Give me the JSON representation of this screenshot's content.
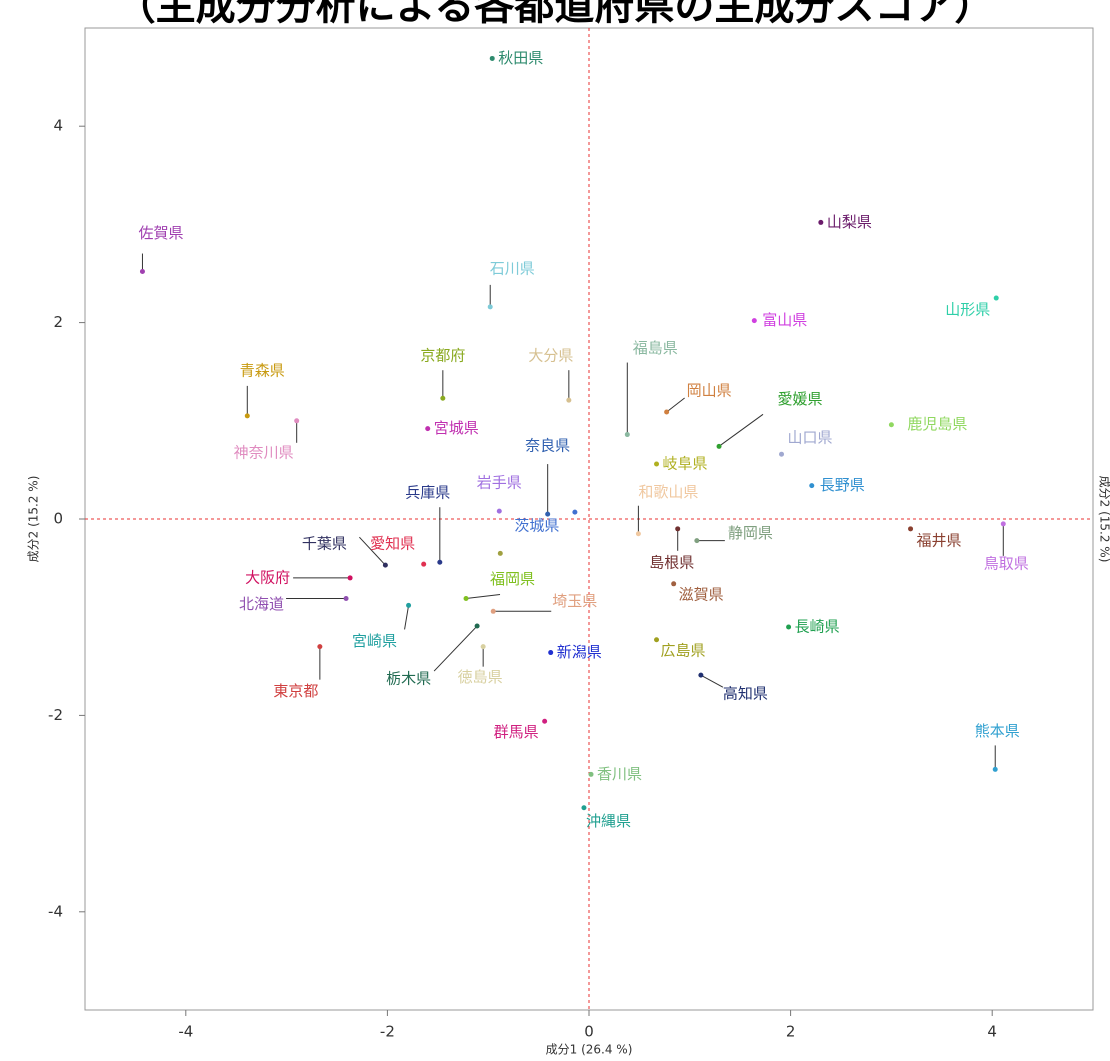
{
  "chart_data": {
    "type": "scatter",
    "title": "（主成分分析による各都道府県の主成分スコア）",
    "x_label": "成分1 (26.4 %)",
    "y_label": "成分2 (15.2 %)",
    "xlim": [
      -5,
      5
    ],
    "ylim": [
      -5,
      5
    ],
    "xticks": [
      -4,
      -2,
      0,
      2,
      4
    ],
    "yticks": [
      -4,
      -2,
      0,
      2,
      4
    ],
    "zero_lines": true,
    "zero_line_color": "#e83030",
    "labels": [
      "秋田県",
      "山梨県",
      "佐賀県",
      "石川県",
      "山形県",
      "富山県",
      "青森県",
      "神奈川県",
      "京都府",
      "大分県",
      "福島県",
      "岡山県",
      "愛媛県",
      "鹿児島県",
      "宮城県",
      "山口県",
      "奈良県",
      "岐阜県",
      "長野県",
      "岩手県",
      "和歌山県",
      "兵庫県",
      "茨城県",
      "静岡県",
      "福井県",
      "鳥取県",
      "千葉県",
      "愛知県",
      "島根県",
      "大阪府",
      "福岡県",
      null,
      "北海道",
      "宮崎県",
      "滋賀県",
      "埼玉県",
      "長崎県",
      "栃木県",
      "徳島県",
      "新潟県",
      "広島県",
      "高知県",
      "東京都",
      "群馬県",
      "熊本県",
      "香川県",
      "沖縄県"
    ],
    "x": [
      -0.96,
      2.3,
      -4.43,
      -0.98,
      4.04,
      1.64,
      -3.39,
      -2.9,
      -1.45,
      -0.2,
      0.38,
      0.77,
      1.29,
      3.0,
      -1.6,
      1.91,
      -0.41,
      0.67,
      2.21,
      -0.89,
      0.49,
      -1.48,
      -0.14,
      1.07,
      3.19,
      4.11,
      -2.02,
      -1.64,
      0.88,
      -2.37,
      -1.22,
      -0.88,
      -2.41,
      -1.79,
      0.84,
      -0.95,
      1.98,
      -1.11,
      -1.05,
      -0.38,
      0.67,
      1.11,
      -2.67,
      -0.44,
      4.03,
      0.02,
      -0.05
    ],
    "y": [
      4.69,
      3.02,
      2.52,
      2.16,
      2.25,
      2.02,
      1.05,
      1.0,
      1.23,
      1.21,
      0.86,
      1.09,
      0.74,
      0.96,
      0.92,
      0.66,
      0.05,
      0.56,
      0.34,
      0.08,
      -0.15,
      -0.44,
      0.07,
      -0.22,
      -0.1,
      -0.05,
      -0.47,
      -0.46,
      -0.1,
      -0.6,
      -0.81,
      -0.35,
      -0.81,
      -0.88,
      -0.66,
      -0.94,
      -1.1,
      -1.09,
      -1.3,
      -1.36,
      -1.23,
      -1.59,
      -1.3,
      -2.06,
      -2.55,
      -2.6,
      -2.94
    ],
    "colors": [
      "#2e8b6e",
      "#6a1b6a",
      "#a040b0",
      "#7ecbd8",
      "#2ecfa8",
      "#d040e0",
      "#c89a10",
      "#e08cc0",
      "#8aaa20",
      "#d6c090",
      "#8ab8a0",
      "#d08040",
      "#30a030",
      "#90d860",
      "#c030b0",
      "#a0a8d0",
      "#3060b0",
      "#b0b020",
      "#3090d0",
      "#a070e0",
      "#f0c8a0",
      "#2a3a8a",
      "#4070d0",
      "#80a080",
      "#8a4030",
      "#c070e0",
      "#303060",
      "#e03050",
      "#703030",
      "#d01060",
      "#80c020",
      "#a0a040",
      "#9050b0",
      "#20a0a0",
      "#a06040",
      "#e0a080",
      "#20a050",
      "#206a50",
      "#d8d0a0",
      "#2030d0",
      "#a0a020",
      "#203070",
      "#d04040",
      "#d02080",
      "#30a0d0",
      "#80c080",
      "#20a090"
    ]
  }
}
